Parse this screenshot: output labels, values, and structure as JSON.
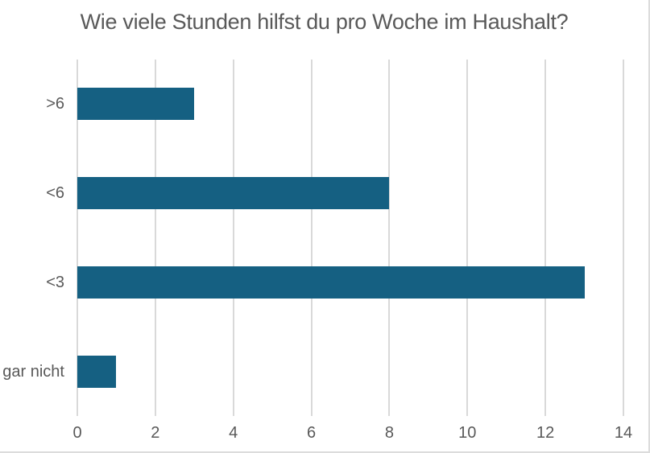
{
  "chart_data": {
    "type": "bar",
    "orientation": "horizontal",
    "title": "Wie viele Stunden hilfst du pro Woche im Haushalt?",
    "categories": [
      ">6",
      "<6",
      "<3",
      "gar nicht"
    ],
    "values": [
      3,
      8,
      13,
      1
    ],
    "xlabel": "",
    "ylabel": "",
    "xlim": [
      0,
      14
    ],
    "xticks": [
      0,
      2,
      4,
      6,
      8,
      10,
      12,
      14
    ],
    "grid": true,
    "legend": false,
    "colors": {
      "bar": "#156082",
      "grid": "#d9d9d9",
      "text": "#595959",
      "background": "#ffffff"
    }
  }
}
